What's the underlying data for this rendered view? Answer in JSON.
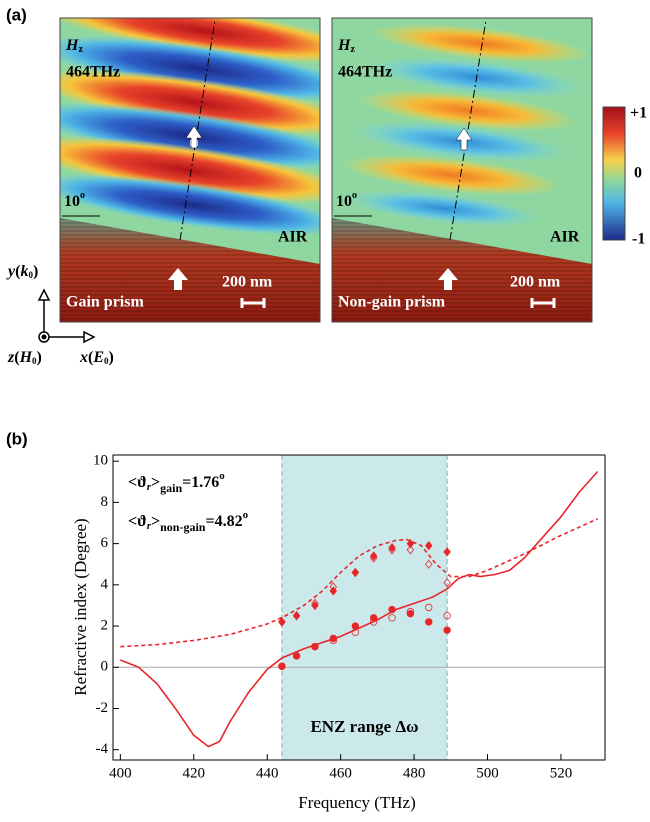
{
  "panel_a": {
    "label": "(a)",
    "maps": [
      {
        "field": [
          "H",
          "z"
        ],
        "frequency": "464THz",
        "angle": [
          "10",
          "o"
        ],
        "medium": "AIR",
        "scale": "200 nm",
        "prism": "Gain prism"
      },
      {
        "field": [
          "H",
          "z"
        ],
        "frequency": "464THz",
        "angle": [
          "10",
          "o"
        ],
        "medium": "AIR",
        "scale": "200 nm",
        "prism": "Non-gain prism"
      }
    ],
    "colorbar": [
      "+1",
      "0",
      "-1"
    ],
    "axes": {
      "y": [
        "y",
        "(",
        "k",
        "0",
        ")"
      ],
      "z": [
        "z",
        "(",
        "H",
        "0",
        ")"
      ],
      "x": [
        "x",
        "(",
        "E",
        "0",
        ")"
      ]
    }
  },
  "chart_data": {
    "type": "line",
    "panel_label": "(b)",
    "xlabel": "Frequency (THz)",
    "ylabel": "Refractive index (Degree)",
    "xlim": [
      398,
      532
    ],
    "ylim": [
      -4.5,
      10.3
    ],
    "xticks": [
      400,
      420,
      440,
      460,
      480,
      500,
      520
    ],
    "yticks": [
      -4,
      -2,
      0,
      2,
      4,
      6,
      8,
      10
    ],
    "hline": 0,
    "enz_range": [
      444,
      489
    ],
    "enz_label": "ENZ range Δω",
    "enz_color": "#cbe9ea",
    "annotations": [
      [
        "<ϑ",
        "r",
        ">",
        "gain",
        "=1.76",
        "o"
      ],
      [
        "<ϑ",
        "r",
        ">",
        "non-gain",
        "=4.82",
        "o"
      ]
    ],
    "series": [
      {
        "color": "#e8262a",
        "style": "solid",
        "marker": "none",
        "x": [
          400,
          405,
          410,
          415,
          420,
          424,
          427,
          430,
          435,
          440,
          444,
          450,
          455,
          460,
          465,
          470,
          475,
          480,
          485,
          489,
          492,
          495,
          498,
          502,
          506,
          510,
          515,
          520,
          525,
          530
        ],
        "values": [
          0.35,
          0.0,
          -0.8,
          -2.0,
          -3.3,
          -3.85,
          -3.6,
          -2.6,
          -1.2,
          -0.1,
          0.45,
          0.9,
          1.2,
          1.5,
          1.9,
          2.3,
          2.8,
          3.1,
          3.4,
          3.8,
          4.3,
          4.5,
          4.4,
          4.5,
          4.7,
          5.3,
          6.3,
          7.3,
          8.5,
          9.5
        ]
      },
      {
        "color": "#e8262a",
        "style": "dashed",
        "marker": "none",
        "x": [
          400,
          410,
          420,
          430,
          440,
          445,
          450,
          455,
          460,
          465,
          470,
          475,
          478,
          482,
          486,
          490,
          495,
          500,
          510,
          520,
          530
        ],
        "values": [
          1.0,
          1.1,
          1.3,
          1.6,
          2.1,
          2.5,
          3.0,
          3.7,
          4.6,
          5.4,
          5.9,
          6.15,
          6.2,
          5.9,
          5.0,
          4.4,
          4.4,
          4.7,
          5.5,
          6.4,
          7.2
        ]
      },
      {
        "color": "#e8262a",
        "style": "none",
        "marker": "circle",
        "filled": true,
        "x": [
          444,
          448,
          453,
          458,
          464,
          469,
          474,
          479,
          484,
          489
        ],
        "values": [
          0.05,
          0.55,
          1.0,
          1.4,
          2.0,
          2.4,
          2.8,
          2.6,
          2.2,
          1.8
        ]
      },
      {
        "color": "#e8262a",
        "style": "none",
        "marker": "circle",
        "filled": false,
        "x": [
          444,
          448,
          453,
          458,
          464,
          469,
          474,
          479,
          484,
          489
        ],
        "values": [
          0.05,
          0.55,
          1.0,
          1.3,
          1.7,
          2.2,
          2.4,
          2.7,
          2.9,
          2.5
        ]
      },
      {
        "color": "#e8262a",
        "style": "none",
        "marker": "diamond",
        "filled": true,
        "x": [
          444,
          448,
          453,
          458,
          464,
          469,
          474,
          479,
          484,
          489
        ],
        "values": [
          2.2,
          2.5,
          3.0,
          3.7,
          4.6,
          5.4,
          5.8,
          6.0,
          5.9,
          5.6
        ]
      },
      {
        "color": "#e8262a",
        "style": "none",
        "marker": "diamond",
        "filled": false,
        "x": [
          444,
          448,
          453,
          458,
          464,
          469,
          474,
          479,
          484,
          489
        ],
        "values": [
          2.2,
          2.5,
          3.1,
          3.9,
          4.6,
          5.3,
          5.7,
          5.7,
          5.0,
          4.1
        ]
      }
    ]
  }
}
